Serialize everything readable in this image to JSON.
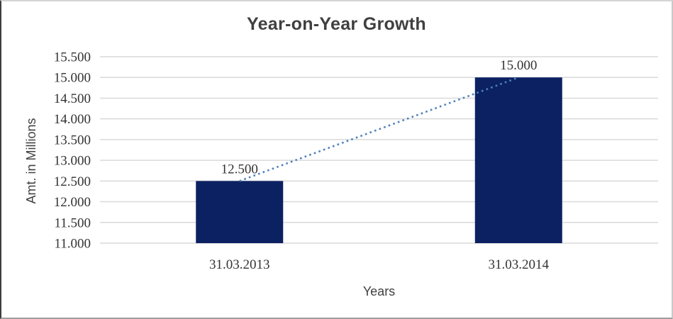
{
  "title": "Year-on-Year Growth",
  "colors": {
    "bar": "#0b2161",
    "trendline": "#4f81bd",
    "gridline": "#d9d9d9",
    "title_text": "#404040",
    "axis_text": "#404040",
    "tick_text": "#333333",
    "background": "#ffffff"
  },
  "chart_data": {
    "type": "bar",
    "title": "Year-on-Year Growth",
    "categories": [
      "31.03.2013",
      "31.03.2014"
    ],
    "values": [
      12.5,
      15.0
    ],
    "value_labels": [
      "12.500",
      "15.000"
    ],
    "xlabel": "Years",
    "ylabel": "Amt. in Millions",
    "ylim": [
      11.0,
      15.5
    ],
    "ytick_step": 0.5,
    "ytick_labels": [
      "11.000",
      "11.500",
      "12.000",
      "12.500",
      "13.000",
      "13.500",
      "14.000",
      "14.500",
      "15.000",
      "15.500"
    ],
    "grid": true,
    "legend": false,
    "trendline": {
      "show": true,
      "style": "dotted",
      "connects": "bar-tops"
    }
  }
}
